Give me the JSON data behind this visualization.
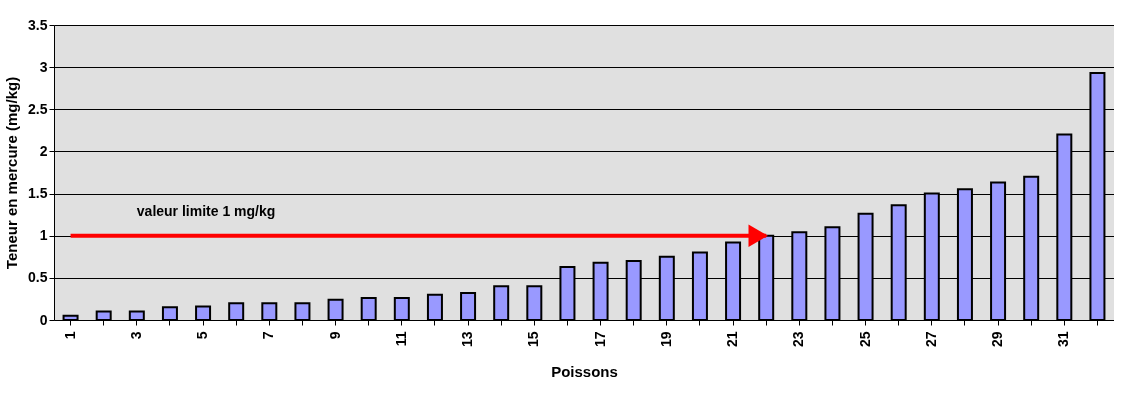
{
  "chart_data": {
    "type": "bar",
    "xlabel": "Poissons",
    "ylabel": "Teneur en mercure (mg/kg)",
    "categories": [
      "1",
      null,
      "3",
      null,
      "5",
      null,
      "7",
      null,
      "9",
      null,
      "11",
      null,
      "13",
      null,
      "15",
      null,
      "17",
      null,
      "19",
      null,
      "21",
      null,
      "23",
      null,
      "25",
      null,
      "27",
      null,
      "29",
      null,
      "31",
      null
    ],
    "values": [
      0.05,
      0.1,
      0.1,
      0.15,
      0.16,
      0.2,
      0.2,
      0.2,
      0.24,
      0.26,
      0.26,
      0.3,
      0.32,
      0.4,
      0.4,
      0.63,
      0.68,
      0.7,
      0.75,
      0.8,
      0.92,
      1.0,
      1.04,
      1.1,
      1.26,
      1.36,
      1.5,
      1.55,
      1.63,
      1.7,
      2.2,
      2.93
    ],
    "color": "#9999ff",
    "ylim": [
      0,
      3.5
    ],
    "yticks": [
      0,
      0.5,
      1,
      1.5,
      2,
      2.5,
      3,
      3.5
    ],
    "grid": "y",
    "ref_lines": [
      {
        "axis": "y",
        "value": 1,
        "label": "valeur limite 1 mg/kg",
        "color": "#ff0000"
      }
    ]
  }
}
